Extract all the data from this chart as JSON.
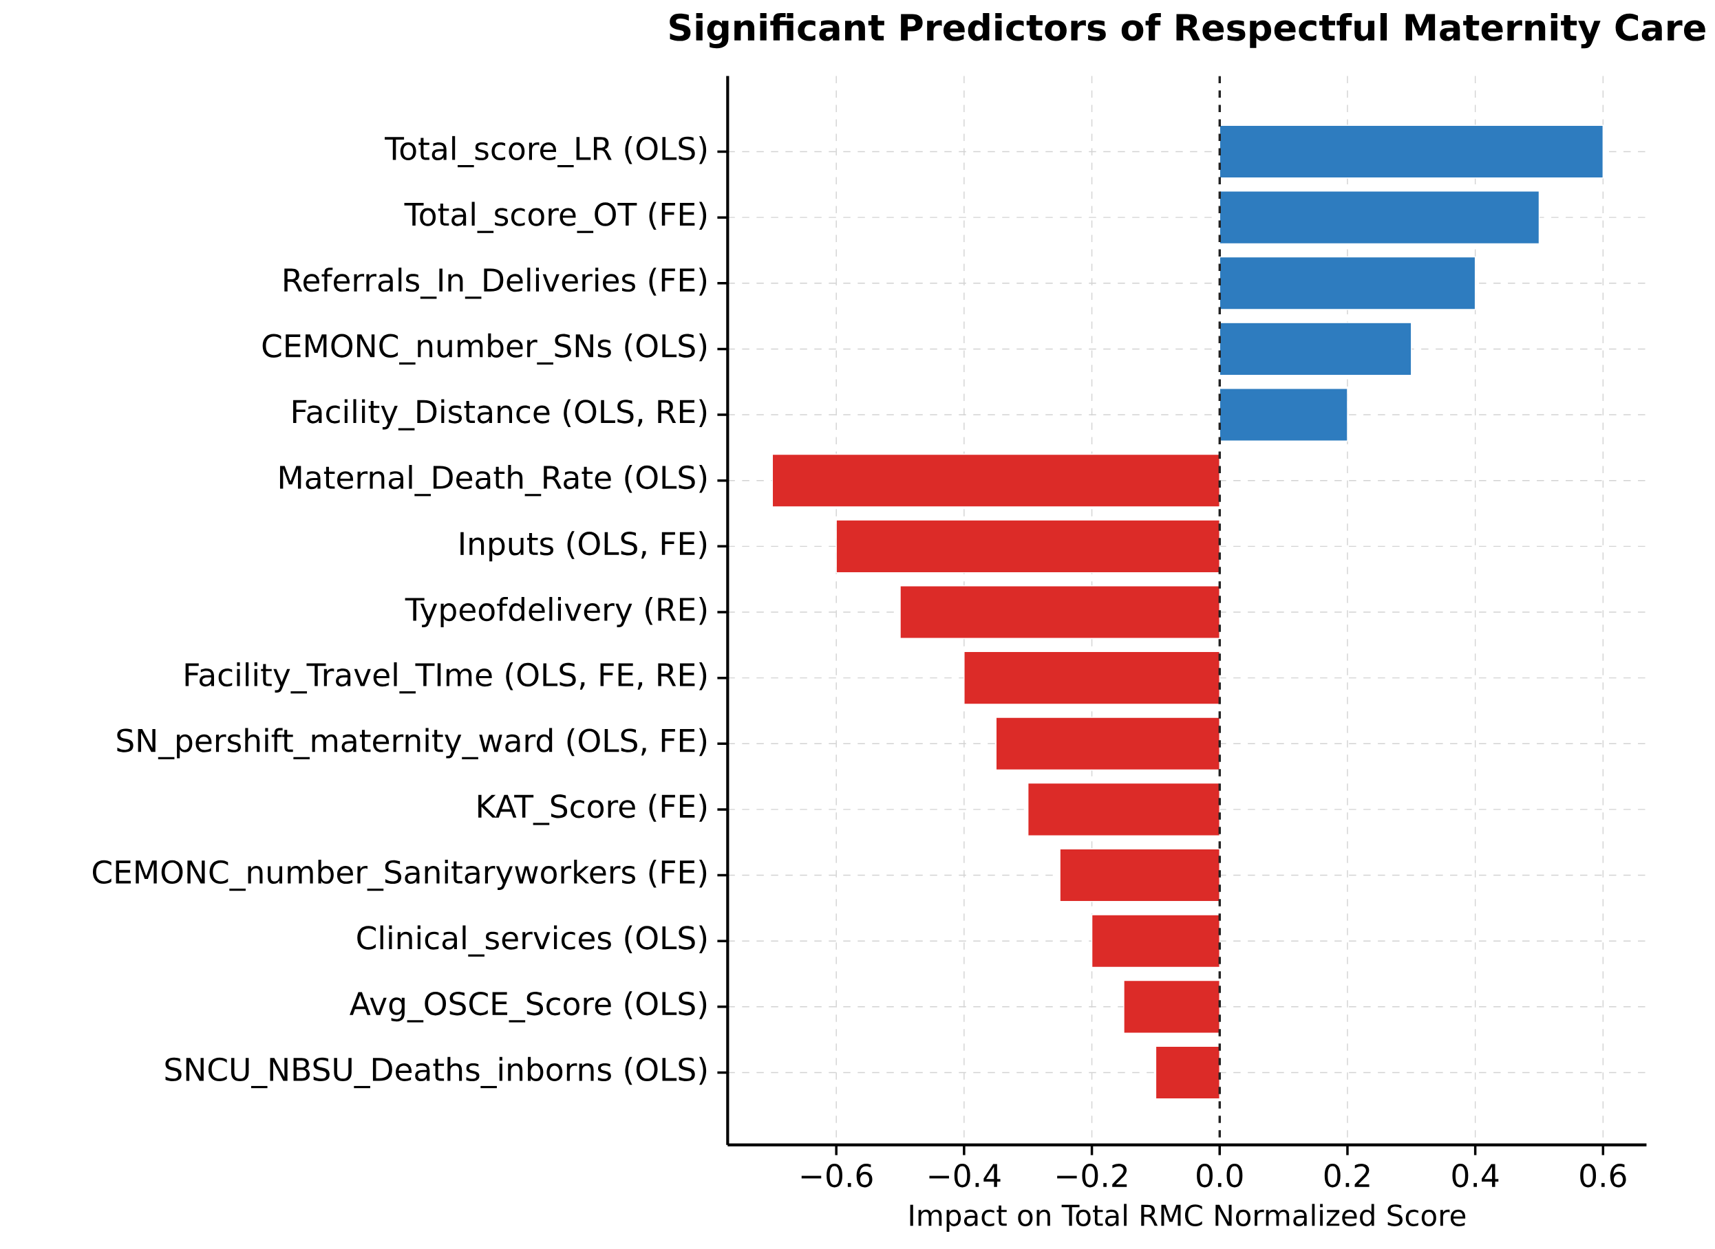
{
  "chart_data": {
    "type": "bar",
    "orientation": "horizontal",
    "title": "Significant Predictors of Respectful Maternity Care",
    "xlabel": "Impact on Total RMC Normalized Score",
    "categories": [
      "Total_score_LR (OLS)",
      "Total_score_OT (FE)",
      "Referrals_In_Deliveries (FE)",
      "CEMONC_number_SNs (OLS)",
      "Facility_Distance (OLS, RE)",
      "Maternal_Death_Rate (OLS)",
      "Inputs (OLS, FE)",
      "Typeofdelivery (RE)",
      "Facility_Travel_TIme (OLS, FE, RE)",
      "SN_pershift_maternity_ward (OLS, FE)",
      "KAT_Score (FE)",
      "CEMONC_number_Sanitaryworkers (FE)",
      "Clinical_services (OLS)",
      "Avg_OSCE_Score (OLS)",
      "SNCU_NBSU_Deaths_inborns (OLS)"
    ],
    "values": [
      0.6,
      0.5,
      0.4,
      0.3,
      0.2,
      -0.7,
      -0.6,
      -0.5,
      -0.4,
      -0.35,
      -0.3,
      -0.25,
      -0.2,
      -0.15,
      -0.1
    ],
    "colors": [
      "#2e7cbf",
      "#2e7cbf",
      "#2e7cbf",
      "#2e7cbf",
      "#2e7cbf",
      "#dc2b28",
      "#dc2b28",
      "#dc2b28",
      "#dc2b28",
      "#dc2b28",
      "#dc2b28",
      "#dc2b28",
      "#dc2b28",
      "#dc2b28",
      "#dc2b28"
    ],
    "xlim": [
      -0.77,
      0.668
    ],
    "xticks": [
      {
        "value": -0.6,
        "label": "−0.6"
      },
      {
        "value": -0.4,
        "label": "−0.4"
      },
      {
        "value": -0.2,
        "label": "−0.2"
      },
      {
        "value": 0.0,
        "label": "0.0"
      },
      {
        "value": 0.2,
        "label": "0.2"
      },
      {
        "value": 0.4,
        "label": "0.4"
      },
      {
        "value": 0.6,
        "label": "0.6"
      }
    ],
    "ref_lines": [
      {
        "axis": "x",
        "value": 0,
        "color": "#222222",
        "line_style": "dashed"
      }
    ],
    "grid": true
  }
}
